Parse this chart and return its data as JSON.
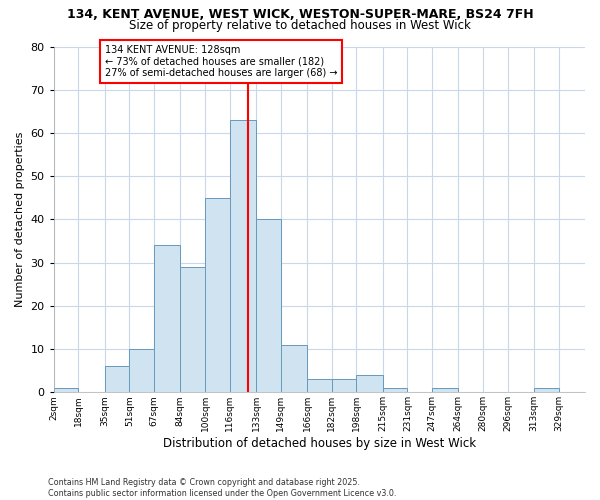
{
  "title_line1": "134, KENT AVENUE, WEST WICK, WESTON-SUPER-MARE, BS24 7FH",
  "title_line2": "Size of property relative to detached houses in West Wick",
  "xlabel": "Distribution of detached houses by size in West Wick",
  "ylabel": "Number of detached properties",
  "bin_labels": [
    "2sqm",
    "18sqm",
    "35sqm",
    "51sqm",
    "67sqm",
    "84sqm",
    "100sqm",
    "116sqm",
    "133sqm",
    "149sqm",
    "166sqm",
    "182sqm",
    "198sqm",
    "215sqm",
    "231sqm",
    "247sqm",
    "264sqm",
    "280sqm",
    "296sqm",
    "313sqm",
    "329sqm"
  ],
  "bin_edges": [
    2,
    18,
    35,
    51,
    67,
    84,
    100,
    116,
    133,
    149,
    166,
    182,
    198,
    215,
    231,
    247,
    264,
    280,
    296,
    313,
    329,
    346
  ],
  "bar_heights": [
    1,
    0,
    6,
    10,
    34,
    29,
    45,
    63,
    40,
    11,
    3,
    3,
    4,
    1,
    0,
    1,
    0,
    0,
    0,
    1,
    0
  ],
  "bar_color": "#d0e3f0",
  "bar_edge_color": "#6699bb",
  "property_size": 128,
  "vline_color": "red",
  "annotation_line1": "134 KENT AVENUE: 128sqm",
  "annotation_line2": "← 73% of detached houses are smaller (182)",
  "annotation_line3": "27% of semi-detached houses are larger (68) →",
  "annotation_box_color": "white",
  "annotation_box_edge": "red",
  "ylim": [
    0,
    80
  ],
  "yticks": [
    0,
    10,
    20,
    30,
    40,
    50,
    60,
    70,
    80
  ],
  "footer_line1": "Contains HM Land Registry data © Crown copyright and database right 2025.",
  "footer_line2": "Contains public sector information licensed under the Open Government Licence v3.0.",
  "bg_color": "#ffffff",
  "plot_bg_color": "#ffffff",
  "grid_color": "#c8d8e8"
}
